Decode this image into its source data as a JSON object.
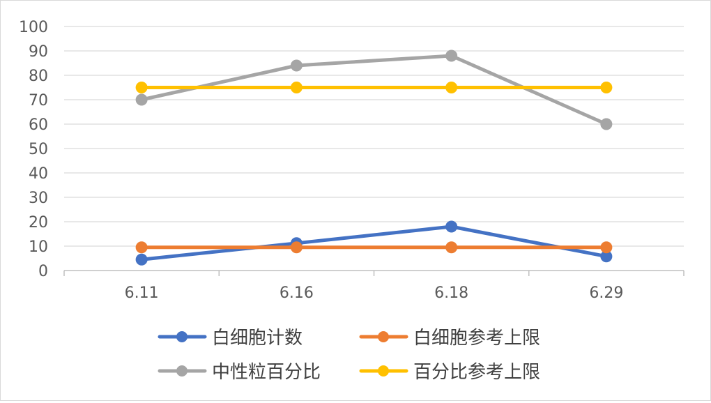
{
  "chart_data": {
    "type": "line",
    "categories": [
      "6.11",
      "6.16",
      "6.18",
      "6.29"
    ],
    "series": [
      {
        "name": "白细胞计数",
        "color": "#4472c4",
        "values": [
          4.5,
          11.2,
          18.0,
          5.8
        ]
      },
      {
        "name": "白细胞参考上限",
        "color": "#ed7d31",
        "values": [
          9.5,
          9.5,
          9.5,
          9.5
        ]
      },
      {
        "name": "中性粒百分比",
        "color": "#a5a5a5",
        "values": [
          70,
          84,
          88,
          60
        ]
      },
      {
        "name": "百分比参考上限",
        "color": "#ffc000",
        "values": [
          75,
          75,
          75,
          75
        ]
      }
    ],
    "title": "",
    "xlabel": "",
    "ylabel": "",
    "ylim": [
      0,
      100
    ],
    "yticks": [
      "0",
      "10",
      "20",
      "30",
      "40",
      "50",
      "60",
      "70",
      "80",
      "90",
      "100"
    ],
    "grid": true,
    "legend_position": "bottom"
  }
}
